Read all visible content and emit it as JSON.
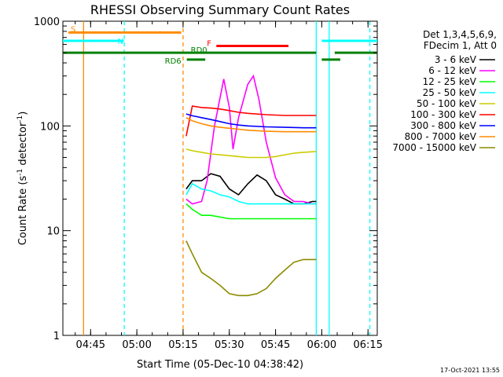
{
  "chart_data": {
    "type": "line",
    "title": "RHESSI Observing Summary Count Rates",
    "xlabel": "Start Time (05-Dec-10 04:38:42)",
    "ylabel_main": "Count Rate (s",
    "ylabel_sup1": "-1",
    "ylabel_mid": " detector",
    "ylabel_sup2": "-1",
    "ylabel_end": ")",
    "yscale": "log",
    "ylim": [
      1,
      1000
    ],
    "xlim_min": [
      4.6,
      6.3
    ],
    "x_ticks": [
      {
        "v": 4.75,
        "label": "04:45"
      },
      {
        "v": 5.0,
        "label": "05:00"
      },
      {
        "v": 5.25,
        "label": "05:15"
      },
      {
        "v": 5.5,
        "label": "05:30"
      },
      {
        "v": 5.75,
        "label": "05:45"
      },
      {
        "v": 6.0,
        "label": "06:00"
      },
      {
        "v": 6.25,
        "label": "06:15"
      }
    ],
    "y_ticks": [
      {
        "v": 1,
        "label": "1"
      },
      {
        "v": 10,
        "label": "10"
      },
      {
        "v": 100,
        "label": "100"
      },
      {
        "v": 1000,
        "label": "1000"
      }
    ],
    "legend_header": [
      "Det 1,3,4,5,6,9,",
      "FDecim 1, Att 0"
    ],
    "series": [
      {
        "name": "3 - 6 keV",
        "color": "#000000",
        "points": [
          [
            5.267,
            25
          ],
          [
            5.3,
            30
          ],
          [
            5.35,
            30
          ],
          [
            5.4,
            35
          ],
          [
            5.45,
            33
          ],
          [
            5.5,
            25
          ],
          [
            5.55,
            22
          ],
          [
            5.6,
            28
          ],
          [
            5.65,
            34
          ],
          [
            5.7,
            30
          ],
          [
            5.75,
            22
          ],
          [
            5.8,
            20
          ],
          [
            5.85,
            18
          ],
          [
            5.9,
            18
          ],
          [
            5.95,
            19
          ],
          [
            5.97,
            19
          ]
        ]
      },
      {
        "name": "6 - 12 keV",
        "color": "#ff00ff",
        "points": [
          [
            5.267,
            20
          ],
          [
            5.3,
            18
          ],
          [
            5.35,
            19
          ],
          [
            5.38,
            30
          ],
          [
            5.42,
            100
          ],
          [
            5.47,
            280
          ],
          [
            5.5,
            150
          ],
          [
            5.52,
            60
          ],
          [
            5.55,
            120
          ],
          [
            5.6,
            250
          ],
          [
            5.63,
            300
          ],
          [
            5.66,
            180
          ],
          [
            5.7,
            70
          ],
          [
            5.75,
            32
          ],
          [
            5.8,
            22
          ],
          [
            5.85,
            19
          ],
          [
            5.9,
            19
          ],
          [
            5.95,
            18
          ],
          [
            5.97,
            18
          ]
        ]
      },
      {
        "name": "12 - 25 keV",
        "color": "#00ff00",
        "points": [
          [
            5.267,
            18
          ],
          [
            5.3,
            16
          ],
          [
            5.35,
            14
          ],
          [
            5.4,
            14
          ],
          [
            5.5,
            13
          ],
          [
            5.6,
            13
          ],
          [
            5.7,
            13
          ],
          [
            5.8,
            13
          ],
          [
            5.9,
            13
          ],
          [
            5.97,
            13
          ]
        ]
      },
      {
        "name": "25 - 50 keV",
        "color": "#00ffff",
        "points": [
          [
            5.267,
            22
          ],
          [
            5.3,
            28
          ],
          [
            5.35,
            25
          ],
          [
            5.4,
            24
          ],
          [
            5.45,
            22
          ],
          [
            5.5,
            21
          ],
          [
            5.55,
            19
          ],
          [
            5.6,
            18
          ],
          [
            5.7,
            18
          ],
          [
            5.8,
            18
          ],
          [
            5.9,
            18
          ],
          [
            5.97,
            18
          ]
        ]
      },
      {
        "name": "50 - 100 keV",
        "color": "#cccc00",
        "points": [
          [
            5.267,
            60
          ],
          [
            5.3,
            58
          ],
          [
            5.35,
            56
          ],
          [
            5.4,
            54
          ],
          [
            5.45,
            53
          ],
          [
            5.5,
            52
          ],
          [
            5.55,
            51
          ],
          [
            5.6,
            50
          ],
          [
            5.7,
            50
          ],
          [
            5.75,
            51
          ],
          [
            5.8,
            53
          ],
          [
            5.85,
            55
          ],
          [
            5.9,
            56
          ],
          [
            5.97,
            57
          ]
        ]
      },
      {
        "name": "100 - 300 keV",
        "color": "#ff0000",
        "points": [
          [
            5.267,
            80
          ],
          [
            5.3,
            155
          ],
          [
            5.35,
            150
          ],
          [
            5.4,
            148
          ],
          [
            5.45,
            145
          ],
          [
            5.5,
            140
          ],
          [
            5.55,
            135
          ],
          [
            5.6,
            132
          ],
          [
            5.7,
            128
          ],
          [
            5.8,
            126
          ],
          [
            5.9,
            126
          ],
          [
            5.97,
            126
          ]
        ]
      },
      {
        "name": "300 - 800 keV",
        "color": "#0000ff",
        "points": [
          [
            5.267,
            130
          ],
          [
            5.3,
            125
          ],
          [
            5.35,
            120
          ],
          [
            5.4,
            115
          ],
          [
            5.45,
            110
          ],
          [
            5.5,
            105
          ],
          [
            5.55,
            102
          ],
          [
            5.6,
            100
          ],
          [
            5.7,
            98
          ],
          [
            5.8,
            97
          ],
          [
            5.9,
            96
          ],
          [
            5.97,
            96
          ]
        ]
      },
      {
        "name": "800 - 7000 keV",
        "color": "#ff8c00",
        "points": [
          [
            5.267,
            120
          ],
          [
            5.3,
            112
          ],
          [
            5.35,
            105
          ],
          [
            5.4,
            100
          ],
          [
            5.45,
            97
          ],
          [
            5.5,
            95
          ],
          [
            5.55,
            93
          ],
          [
            5.6,
            91
          ],
          [
            5.7,
            89
          ],
          [
            5.8,
            88
          ],
          [
            5.9,
            88
          ],
          [
            5.97,
            88
          ]
        ]
      },
      {
        "name": "7000 - 15000 keV",
        "color": "#8b8b00",
        "points": [
          [
            5.267,
            8
          ],
          [
            5.3,
            6
          ],
          [
            5.35,
            4
          ],
          [
            5.4,
            3.5
          ],
          [
            5.45,
            3
          ],
          [
            5.5,
            2.5
          ],
          [
            5.55,
            2.4
          ],
          [
            5.6,
            2.4
          ],
          [
            5.65,
            2.5
          ],
          [
            5.7,
            2.8
          ],
          [
            5.75,
            3.5
          ],
          [
            5.8,
            4.2
          ],
          [
            5.85,
            5
          ],
          [
            5.9,
            5.3
          ],
          [
            5.97,
            5.3
          ]
        ]
      }
    ],
    "flag_bars": [
      {
        "name": "S",
        "color": "#ff8c00",
        "label": "S",
        "y": 780,
        "segments": [
          [
            4.63,
            5.24
          ]
        ]
      },
      {
        "name": "N",
        "color": "#00ffff",
        "label": "N",
        "y": 650,
        "segments": [
          [
            4.6,
            4.93
          ],
          [
            6.0,
            6.3
          ]
        ]
      },
      {
        "name": "F",
        "color": "#ff0000",
        "label": "F",
        "y": 580,
        "segments": [
          [
            5.43,
            5.82
          ]
        ]
      },
      {
        "name": "RD0",
        "color": "#008000",
        "label": "RD0",
        "y": 500,
        "segments": [
          [
            4.6,
            5.97
          ],
          [
            6.07,
            6.3
          ]
        ]
      },
      {
        "name": "RD6",
        "color": "#008000",
        "label": "RD6",
        "y": 430,
        "segments": [
          [
            5.27,
            5.37
          ],
          [
            6.0,
            6.1
          ]
        ]
      }
    ],
    "vlines": [
      {
        "v": 4.712,
        "color": "#ff8c00",
        "dash": false
      },
      {
        "v": 4.932,
        "color": "#00ffff",
        "dash": true
      },
      {
        "v": 5.25,
        "color": "#ff8c00",
        "dash": true
      },
      {
        "v": 5.97,
        "color": "#00ffff",
        "dash": false
      },
      {
        "v": 6.04,
        "color": "#00ffff",
        "dash": false
      },
      {
        "v": 6.26,
        "color": "#00ffff",
        "dash": true
      }
    ],
    "footer": "17-Oct-2021 13:55"
  }
}
